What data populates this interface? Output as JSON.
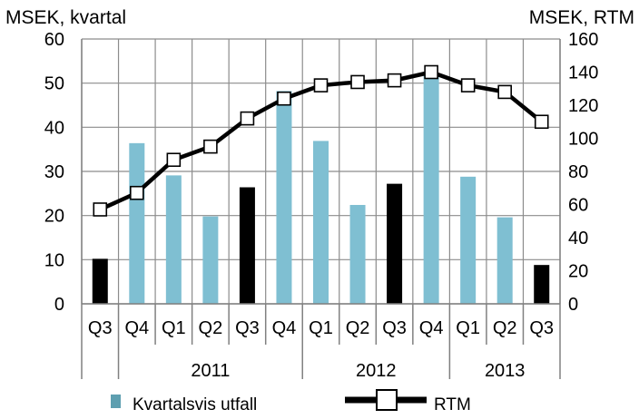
{
  "chart_data": {
    "type": "bar+line",
    "left_axis_title": "MSEK, kvartal",
    "right_axis_title": "MSEK, RTM",
    "left_ylim": [
      0,
      60
    ],
    "left_ticks": [
      "0",
      "10",
      "20",
      "30",
      "40",
      "50",
      "60"
    ],
    "right_ylim": [
      0,
      160
    ],
    "right_ticks": [
      "0",
      "20",
      "40",
      "60",
      "80",
      "100",
      "120",
      "140",
      "160"
    ],
    "quarters": [
      "Q3",
      "Q4",
      "Q1",
      "Q2",
      "Q3",
      "Q4",
      "Q1",
      "Q2",
      "Q3",
      "Q4",
      "Q1",
      "Q2",
      "Q3"
    ],
    "years": [
      {
        "label": "2011",
        "from": 1,
        "to": 5
      },
      {
        "label": "2012",
        "from": 6,
        "to": 9
      },
      {
        "label": "2013",
        "from": 10,
        "to": 12
      }
    ],
    "series": [
      {
        "name": "Kvartalsvis utfall",
        "axis": "left",
        "values": [
          10.2,
          36.4,
          29.1,
          19.8,
          26.4,
          48.2,
          36.9,
          22.4,
          27.2,
          51.8,
          28.8,
          19.6,
          8.8
        ],
        "bar_colors": [
          "#000000",
          "#7fbfd2",
          "#7fbfd2",
          "#7fbfd2",
          "#000000",
          "#7fbfd2",
          "#7fbfd2",
          "#7fbfd2",
          "#000000",
          "#7fbfd2",
          "#7fbfd2",
          "#7fbfd2",
          "#000000"
        ]
      },
      {
        "name": "RTM",
        "axis": "right",
        "values": [
          57,
          67,
          87,
          95,
          112,
          124,
          132,
          134,
          135,
          140,
          132,
          128,
          110
        ]
      }
    ],
    "legend": [
      {
        "label": "Kvartalsvis utfall",
        "color": "#5e9fb0"
      },
      {
        "label": "RTM",
        "color": "#000000"
      }
    ],
    "grid": true
  }
}
